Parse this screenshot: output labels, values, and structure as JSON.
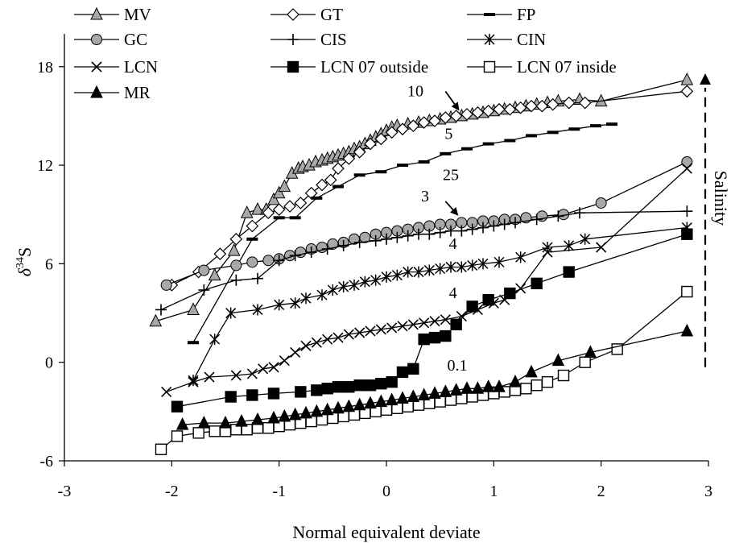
{
  "chart_data": {
    "type": "scatter",
    "xlabel": "Normal equivalent deviate",
    "ylabel": "δ34S",
    "ylabel_main": "δ",
    "ylabel_sup": "34",
    "ylabel_tail": "S",
    "xlim": [
      -3,
      3
    ],
    "ylim": [
      -6,
      20
    ],
    "x_ticks": [
      -3,
      -2,
      -1,
      0,
      1,
      2,
      3
    ],
    "y_ticks": [
      -6,
      0,
      6,
      12,
      18
    ],
    "grid": false,
    "legend_placement": "top",
    "side_label": "Salinity",
    "annotations": [
      {
        "text": "10",
        "x": 0.27,
        "y": 16.2
      },
      {
        "text": "5",
        "x": 0.58,
        "y": 13.6
      },
      {
        "text": "25",
        "x": 0.6,
        "y": 11.1
      },
      {
        "text": "3",
        "x": 0.36,
        "y": 9.8
      },
      {
        "text": "4",
        "x": 0.62,
        "y": 6.9
      },
      {
        "text": "4",
        "x": 0.62,
        "y": 3.9
      },
      {
        "text": "0.1",
        "x": 0.66,
        "y": -0.5
      }
    ],
    "annotation_arrows": [
      {
        "from": [
          0.55,
          16.5
        ],
        "to": [
          0.67,
          15.4
        ]
      },
      {
        "from": [
          0.55,
          9.8
        ],
        "to": [
          0.66,
          9.0
        ]
      }
    ],
    "salinity_arrow": {
      "x": 2.97,
      "y_from": -0.3,
      "y_to": 17.3
    },
    "series": [
      {
        "name": "MV",
        "marker": "triangle",
        "fill": "#a8a8a8",
        "color": "#000000",
        "x": [
          -2.15,
          -1.8,
          -1.6,
          -1.42,
          -1.3,
          -1.2,
          -1.12,
          -1.05,
          -1.0,
          -0.95,
          -0.88,
          -0.82,
          -0.78,
          -0.72,
          -0.66,
          -0.6,
          -0.55,
          -0.5,
          -0.45,
          -0.4,
          -0.35,
          -0.3,
          -0.25,
          -0.2,
          -0.15,
          -0.1,
          -0.05,
          0.0,
          0.05,
          0.1,
          0.2,
          0.3,
          0.4,
          0.5,
          0.6,
          0.7,
          0.8,
          0.9,
          1.0,
          1.1,
          1.2,
          1.3,
          1.4,
          1.5,
          1.6,
          1.8,
          2.0,
          2.8
        ],
        "y": [
          2.5,
          3.2,
          5.3,
          6.8,
          9.1,
          9.3,
          9.3,
          9.9,
          10.3,
          10.7,
          11.5,
          11.8,
          11.9,
          12.0,
          12.2,
          12.3,
          12.4,
          12.5,
          12.6,
          12.7,
          12.8,
          13.0,
          13.1,
          13.3,
          13.5,
          13.7,
          13.9,
          14.1,
          14.3,
          14.4,
          14.5,
          14.6,
          14.7,
          14.8,
          14.9,
          15.0,
          15.1,
          15.2,
          15.3,
          15.4,
          15.5,
          15.6,
          15.7,
          15.8,
          15.9,
          16.0,
          15.9,
          17.2
        ]
      },
      {
        "name": "GT",
        "marker": "diamond",
        "fill": "#ffffff",
        "color": "#000000",
        "x": [
          -2.0,
          -1.75,
          -1.55,
          -1.4,
          -1.25,
          -1.1,
          -1.0,
          -0.9,
          -0.8,
          -0.7,
          -0.6,
          -0.52,
          -0.45,
          -0.35,
          -0.25,
          -0.15,
          -0.05,
          0.05,
          0.15,
          0.25,
          0.35,
          0.45,
          0.55,
          0.65,
          0.75,
          0.85,
          0.95,
          1.05,
          1.15,
          1.25,
          1.35,
          1.45,
          1.55,
          1.7,
          1.85,
          2.8
        ],
        "y": [
          4.7,
          5.5,
          6.6,
          7.5,
          8.3,
          9.1,
          9.3,
          9.5,
          9.7,
          10.3,
          10.8,
          11.1,
          11.8,
          12.4,
          12.8,
          13.3,
          13.6,
          14.0,
          14.2,
          14.4,
          14.6,
          14.7,
          14.9,
          15.0,
          15.1,
          15.2,
          15.3,
          15.4,
          15.4,
          15.5,
          15.6,
          15.6,
          15.7,
          15.8,
          15.8,
          16.5
        ]
      },
      {
        "name": "FP",
        "marker": "dash",
        "fill": "#000000",
        "color": "#000000",
        "x": [
          -1.8,
          -1.25,
          -1.0,
          -0.85,
          -0.65,
          -0.45,
          -0.25,
          -0.05,
          0.15,
          0.35,
          0.55,
          0.75,
          0.95,
          1.15,
          1.35,
          1.55,
          1.75,
          1.95,
          2.1
        ],
        "y": [
          1.2,
          7.5,
          8.8,
          8.8,
          10.0,
          10.7,
          11.4,
          11.6,
          12.0,
          12.2,
          12.7,
          13.0,
          13.3,
          13.5,
          13.8,
          14.0,
          14.2,
          14.4,
          14.5
        ]
      },
      {
        "name": "GC",
        "marker": "circle",
        "fill": "#a8a8a8",
        "color": "#000000",
        "x": [
          -2.05,
          -1.7,
          -1.4,
          -1.25,
          -1.1,
          -1.0,
          -0.9,
          -0.8,
          -0.7,
          -0.6,
          -0.5,
          -0.4,
          -0.3,
          -0.2,
          -0.1,
          0.0,
          0.1,
          0.2,
          0.3,
          0.4,
          0.5,
          0.6,
          0.7,
          0.8,
          0.9,
          1.0,
          1.1,
          1.2,
          1.3,
          1.45,
          1.65,
          2.0,
          2.8
        ],
        "y": [
          4.7,
          5.6,
          5.9,
          6.1,
          6.2,
          6.3,
          6.5,
          6.7,
          6.9,
          7.0,
          7.2,
          7.3,
          7.5,
          7.6,
          7.8,
          7.9,
          8.0,
          8.1,
          8.2,
          8.3,
          8.4,
          8.4,
          8.5,
          8.5,
          8.6,
          8.6,
          8.7,
          8.7,
          8.8,
          8.9,
          9.0,
          9.7,
          12.2
        ]
      },
      {
        "name": "CIS",
        "marker": "plus",
        "fill": "#000000",
        "color": "#000000",
        "x": [
          -2.1,
          -1.7,
          -1.4,
          -1.2,
          -1.0,
          -0.85,
          -0.7,
          -0.55,
          -0.4,
          -0.25,
          -0.1,
          0.0,
          0.1,
          0.2,
          0.3,
          0.4,
          0.5,
          0.6,
          0.7,
          0.8,
          0.9,
          1.0,
          1.1,
          1.2,
          1.4,
          1.6,
          1.8,
          2.8
        ],
        "y": [
          3.2,
          4.4,
          5.0,
          5.1,
          6.2,
          6.5,
          6.7,
          6.9,
          7.1,
          7.3,
          7.4,
          7.5,
          7.6,
          7.7,
          7.8,
          7.8,
          7.9,
          8.0,
          8.0,
          8.1,
          8.2,
          8.3,
          8.4,
          8.5,
          8.7,
          8.9,
          9.1,
          9.2
        ]
      },
      {
        "name": "CIN",
        "marker": "star",
        "fill": "#000000",
        "color": "#000000",
        "x": [
          -1.8,
          -1.6,
          -1.45,
          -1.2,
          -1.0,
          -0.85,
          -0.75,
          -0.6,
          -0.5,
          -0.4,
          -0.3,
          -0.2,
          -0.1,
          0.0,
          0.1,
          0.2,
          0.3,
          0.4,
          0.5,
          0.6,
          0.7,
          0.8,
          0.9,
          1.05,
          1.25,
          1.5,
          1.7,
          1.85,
          2.8
        ],
        "y": [
          -1.1,
          1.4,
          3.0,
          3.2,
          3.5,
          3.6,
          3.9,
          4.1,
          4.4,
          4.6,
          4.7,
          4.9,
          5.0,
          5.2,
          5.3,
          5.5,
          5.5,
          5.6,
          5.7,
          5.8,
          5.8,
          5.9,
          6.0,
          6.1,
          6.4,
          7.0,
          7.1,
          7.5,
          8.2
        ]
      },
      {
        "name": "LCN",
        "marker": "x",
        "fill": "#000000",
        "color": "#000000",
        "x": [
          -2.05,
          -1.8,
          -1.65,
          -1.4,
          -1.25,
          -1.15,
          -1.05,
          -0.95,
          -0.85,
          -0.75,
          -0.65,
          -0.55,
          -0.45,
          -0.35,
          -0.25,
          -0.15,
          -0.05,
          0.05,
          0.15,
          0.25,
          0.35,
          0.45,
          0.55,
          0.7,
          0.85,
          1.0,
          1.1,
          1.25,
          1.5,
          2.0,
          2.8
        ],
        "y": [
          -1.8,
          -1.2,
          -0.9,
          -0.8,
          -0.7,
          -0.4,
          -0.3,
          0.1,
          0.6,
          1.0,
          1.2,
          1.4,
          1.5,
          1.7,
          1.8,
          1.9,
          2.0,
          2.1,
          2.2,
          2.3,
          2.4,
          2.5,
          2.6,
          2.8,
          3.2,
          3.6,
          3.8,
          4.5,
          6.7,
          7.0,
          11.8
        ]
      },
      {
        "name": "LCN 07 outside",
        "marker": "square",
        "fill": "#000000",
        "color": "#000000",
        "x": [
          -1.95,
          -1.45,
          -1.25,
          -1.05,
          -0.8,
          -0.65,
          -0.55,
          -0.45,
          -0.35,
          -0.25,
          -0.15,
          -0.05,
          0.05,
          0.15,
          0.25,
          0.35,
          0.45,
          0.55,
          0.65,
          0.8,
          0.95,
          1.15,
          1.4,
          1.7,
          2.8
        ],
        "y": [
          -2.7,
          -2.1,
          -2.0,
          -1.9,
          -1.8,
          -1.7,
          -1.6,
          -1.5,
          -1.5,
          -1.4,
          -1.4,
          -1.3,
          -1.2,
          -0.6,
          -0.4,
          1.4,
          1.5,
          1.6,
          2.3,
          3.4,
          3.8,
          4.2,
          4.8,
          5.5,
          7.8
        ]
      },
      {
        "name": "LCN 07 inside",
        "marker": "square",
        "fill": "#ffffff",
        "color": "#000000",
        "x": [
          -2.1,
          -1.95,
          -1.75,
          -1.6,
          -1.5,
          -1.4,
          -1.3,
          -1.2,
          -1.1,
          -1.0,
          -0.9,
          -0.8,
          -0.7,
          -0.6,
          -0.5,
          -0.4,
          -0.3,
          -0.2,
          -0.1,
          0.0,
          0.1,
          0.2,
          0.3,
          0.4,
          0.5,
          0.6,
          0.7,
          0.8,
          0.9,
          1.0,
          1.1,
          1.2,
          1.3,
          1.4,
          1.5,
          1.65,
          1.85,
          2.15,
          2.8
        ],
        "y": [
          -5.3,
          -4.5,
          -4.3,
          -4.2,
          -4.2,
          -4.1,
          -4.1,
          -4.0,
          -4.0,
          -3.9,
          -3.8,
          -3.7,
          -3.6,
          -3.5,
          -3.4,
          -3.3,
          -3.2,
          -3.1,
          -3.0,
          -2.9,
          -2.8,
          -2.7,
          -2.6,
          -2.5,
          -2.4,
          -2.3,
          -2.2,
          -2.1,
          -2.0,
          -1.9,
          -1.8,
          -1.7,
          -1.6,
          -1.4,
          -1.2,
          -0.8,
          0.0,
          0.8,
          4.3
        ]
      },
      {
        "name": "MR",
        "marker": "triangle",
        "fill": "#000000",
        "color": "#000000",
        "x": [
          -1.9,
          -1.7,
          -1.5,
          -1.35,
          -1.2,
          -1.05,
          -0.95,
          -0.85,
          -0.75,
          -0.65,
          -0.55,
          -0.45,
          -0.35,
          -0.25,
          -0.15,
          -0.05,
          0.05,
          0.15,
          0.25,
          0.35,
          0.45,
          0.55,
          0.65,
          0.75,
          0.85,
          0.95,
          1.05,
          1.2,
          1.35,
          1.6,
          1.9,
          2.8
        ],
        "y": [
          -3.8,
          -3.7,
          -3.7,
          -3.6,
          -3.5,
          -3.4,
          -3.3,
          -3.2,
          -3.1,
          -3.0,
          -2.9,
          -2.8,
          -2.7,
          -2.6,
          -2.5,
          -2.4,
          -2.3,
          -2.2,
          -2.1,
          -2.0,
          -1.9,
          -1.8,
          -1.7,
          -1.6,
          -1.6,
          -1.5,
          -1.5,
          -1.2,
          -0.6,
          0.1,
          0.6,
          1.9
        ]
      }
    ]
  }
}
